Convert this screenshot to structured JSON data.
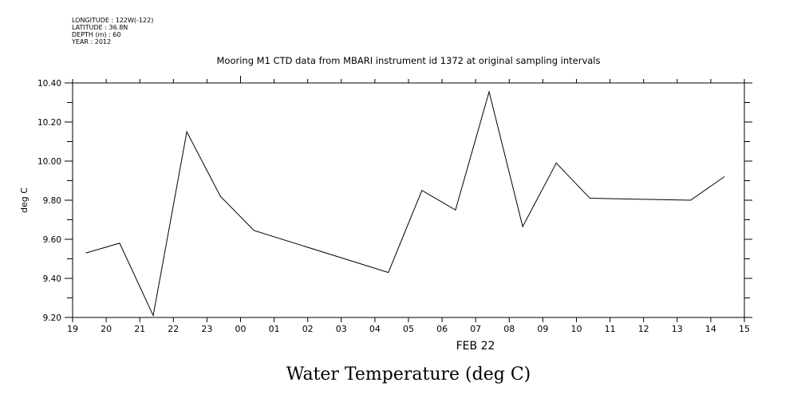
{
  "header": {
    "lines": [
      "LONGITUDE : 122W(-122)",
      "LATITUDE : 36.8N",
      "DEPTH (m) : 60",
      "YEAR : 2012"
    ]
  },
  "chart_data": {
    "type": "line",
    "title": "Mooring M1 CTD data from MBARI instrument id 1372 at original sampling intervals",
    "xlabel": "FEB 22",
    "ylabel": "deg C",
    "caption": "Water Temperature (deg C)",
    "x_tick_labels": [
      "19",
      "20",
      "21",
      "22",
      "23",
      "00",
      "01",
      "02",
      "03",
      "04",
      "05",
      "06",
      "07",
      "08",
      "09",
      "10",
      "11",
      "12",
      "13",
      "14",
      "15"
    ],
    "x_unit": "hours since 19:00 Feb 21",
    "xlim": [
      0,
      20
    ],
    "ylim": [
      9.2,
      10.4
    ],
    "y_tick_labels": [
      "9.20",
      "9.40",
      "9.60",
      "9.80",
      "10.00",
      "10.20",
      "10.40"
    ],
    "series": [
      {
        "name": "Water Temperature",
        "x": [
          0.4,
          1.4,
          2.4,
          3.4,
          4.4,
          5.4,
          9.4,
          10.4,
          11.4,
          12.4,
          13.4,
          14.4,
          15.4,
          18.4,
          19.4
        ],
        "values": [
          9.53,
          9.58,
          9.21,
          10.15,
          9.82,
          9.645,
          9.43,
          9.85,
          9.75,
          10.355,
          9.665,
          9.99,
          9.81,
          9.8,
          9.92
        ]
      }
    ],
    "grid": false
  }
}
